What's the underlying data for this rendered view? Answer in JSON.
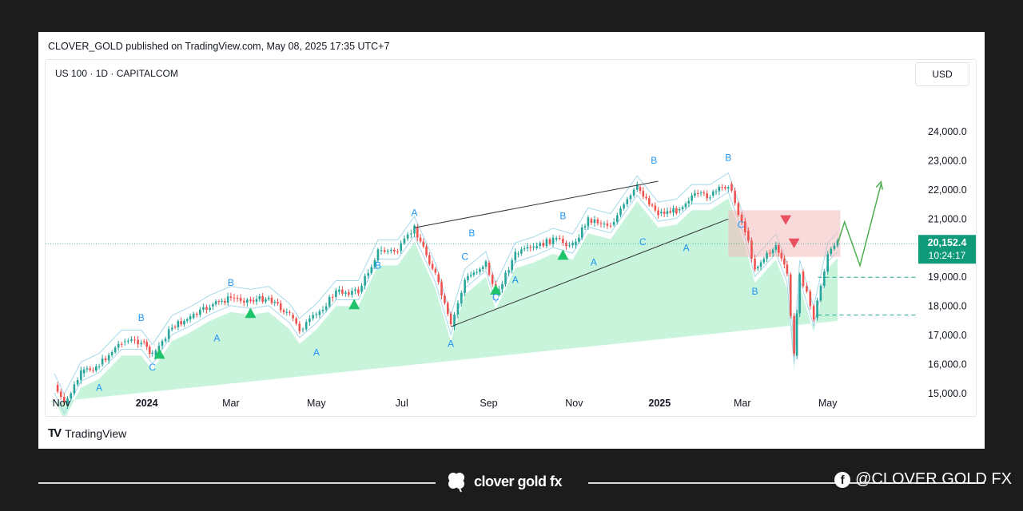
{
  "header": {
    "published": "CLOVER_GOLD published on TradingView.com, May 08, 2025 17:35 UTC+7",
    "symbol": "US 100 · 1D · CAPITALCOM",
    "currency": "USD"
  },
  "last_price": {
    "value": "20,152.4",
    "countdown": "10:24:17"
  },
  "brand": {
    "tradingview": "TradingView"
  },
  "footer": {
    "brand": "clover gold fx",
    "social": "@CLOVER GOLD FX"
  },
  "colors": {
    "up": "#26a69a",
    "down": "#ef5350",
    "cloud": "#b5f0cf",
    "band": "#a6d8ea",
    "arrow": "#4caf50",
    "label": "#2196f3",
    "price_tag": "#0f9b7a",
    "grid": "#eeeeee"
  },
  "chart_data": {
    "type": "line",
    "series": [
      {
        "x": [
          "2023-10-27",
          "2023-11-03",
          "2023-11-15",
          "2023-11-28",
          "2023-12-14",
          "2023-12-28",
          "2024-01-05",
          "2024-01-19",
          "2024-02-01",
          "2024-02-15",
          "2024-03-01",
          "2024-03-15",
          "2024-03-28",
          "2024-04-12",
          "2024-04-19",
          "2024-05-01",
          "2024-05-15",
          "2024-05-31",
          "2024-06-14",
          "2024-06-28",
          "2024-07-10",
          "2024-07-25",
          "2024-08-05",
          "2024-08-15",
          "2024-08-30",
          "2024-09-06",
          "2024-09-20",
          "2024-10-03",
          "2024-10-17",
          "2024-10-31",
          "2024-11-11",
          "2024-11-27",
          "2024-12-16",
          "2024-12-31",
          "2025-01-13",
          "2025-01-24",
          "2025-02-06",
          "2025-02-19",
          "2025-03-03",
          "2025-03-10",
          "2025-03-25",
          "2025-04-02",
          "2025-04-07",
          "2025-04-11",
          "2025-04-21",
          "2025-05-01",
          "2025-05-08"
        ],
        "values": [
          15300,
          14600,
          15700,
          16000,
          16800,
          16800,
          16300,
          17300,
          17600,
          18000,
          18300,
          18200,
          18300,
          17700,
          17200,
          17700,
          18500,
          18500,
          19900,
          19900,
          20700,
          19100,
          17300,
          18900,
          19500,
          18400,
          19800,
          20000,
          20300,
          20100,
          21000,
          20800,
          22100,
          21200,
          21300,
          21800,
          21800,
          22200,
          20600,
          19300,
          20100,
          19100,
          16300,
          19200,
          17600,
          19800,
          20152
        ]
      }
    ],
    "xticks": [
      "Nov",
      "2024",
      "Mar",
      "May",
      "Jul",
      "Sep",
      "Nov",
      "2025",
      "Mar",
      "May"
    ],
    "ylabel": "USD",
    "ylim": [
      14100,
      24700
    ],
    "yticks": [
      15000,
      16000,
      17000,
      18000,
      19000,
      20000,
      21000,
      22000,
      23000,
      24000
    ],
    "ytick_labels": [
      "15,000.0",
      "16,000.0",
      "17,000.0",
      "18,000.0",
      "19,000.0",
      "",
      "21,000.0",
      "22,000.0",
      "23,000.0",
      "24,000.0"
    ],
    "annotations": [
      "A",
      "B",
      "C"
    ],
    "grid": false,
    "scale": "linear"
  }
}
